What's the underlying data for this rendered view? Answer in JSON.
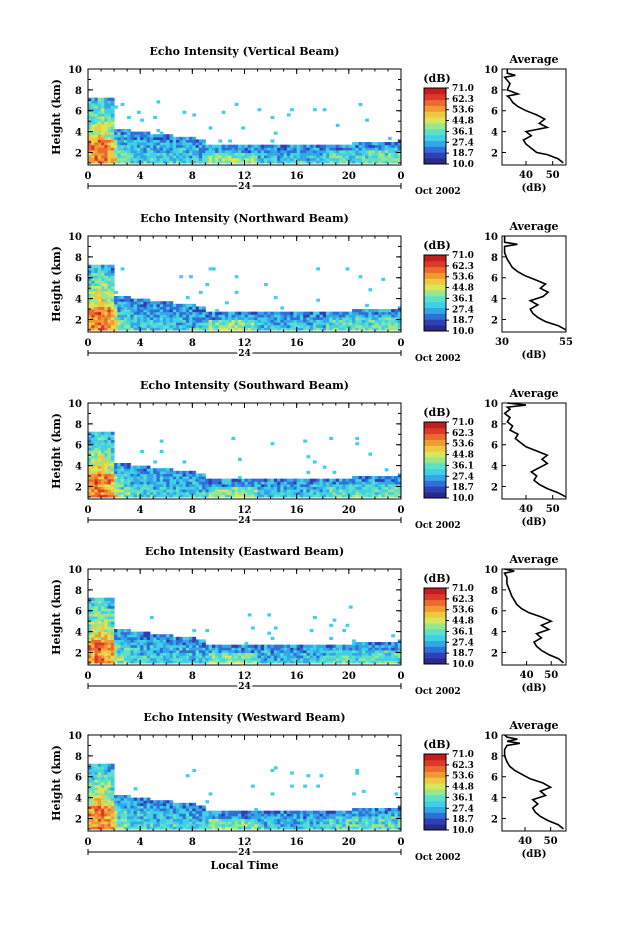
{
  "colors": {
    "colorbar": [
      "#2a2a88",
      "#2f3fb4",
      "#2f6fd8",
      "#33a6e8",
      "#3fd0e8",
      "#5ee0c8",
      "#9ae68a",
      "#d8e65a",
      "#f0c840",
      "#f09a36",
      "#ec6a2e",
      "#dc3a26",
      "#c01e20"
    ],
    "axis": "#000000",
    "profile_line": "#000000"
  },
  "chart_data": [
    {
      "type": "heatmap",
      "title": "Echo Intensity (Vertical Beam)",
      "ylabel": "Height (km)",
      "yticks": [
        "2",
        "4",
        "6",
        "8",
        "10"
      ],
      "ylim": [
        0.8,
        10
      ],
      "xlim": [
        0,
        24
      ],
      "xticks": [
        "0",
        "4",
        "8",
        "12",
        "16",
        "20",
        "0"
      ],
      "day_marker": "24",
      "date_label": "Oct 2002",
      "colorbar": {
        "unit": "(dB)",
        "ticks": [
          "71.0",
          "62.3",
          "53.6",
          "44.8",
          "36.1",
          "27.4",
          "18.7",
          "10.0"
        ]
      },
      "profile": {
        "title": "Average",
        "xlabel": "(dB)",
        "xticks": [
          "40",
          "50"
        ],
        "xlim": [
          31,
          55
        ],
        "yticks": [
          "2",
          "4",
          "6",
          "8",
          "10"
        ],
        "points": [
          [
            54,
            1.0
          ],
          [
            52,
            1.4
          ],
          [
            48,
            1.8
          ],
          [
            44,
            2.0
          ],
          [
            42,
            2.4
          ],
          [
            40,
            2.8
          ],
          [
            39,
            3.2
          ],
          [
            42,
            3.6
          ],
          [
            40,
            4.0
          ],
          [
            44,
            4.2
          ],
          [
            48,
            4.4
          ],
          [
            45,
            4.8
          ],
          [
            47,
            5.2
          ],
          [
            44,
            5.6
          ],
          [
            40,
            6.0
          ],
          [
            37,
            6.4
          ],
          [
            35,
            6.8
          ],
          [
            34,
            7.2
          ],
          [
            33,
            7.4
          ],
          [
            37,
            7.6
          ],
          [
            35,
            7.8
          ],
          [
            33,
            8.0
          ],
          [
            34,
            8.6
          ],
          [
            32,
            9.2
          ],
          [
            36,
            9.4
          ],
          [
            33,
            9.6
          ],
          [
            33,
            10
          ]
        ]
      }
    },
    {
      "type": "heatmap",
      "title": "Echo Intensity (Northward Beam)",
      "ylabel": "Height (km)",
      "yticks": [
        "2",
        "4",
        "6",
        "8",
        "10"
      ],
      "ylim": [
        0.8,
        10
      ],
      "xlim": [
        0,
        24
      ],
      "xticks": [
        "0",
        "4",
        "8",
        "12",
        "16",
        "20",
        "0"
      ],
      "day_marker": "24",
      "date_label": "Oct 2002",
      "colorbar": {
        "unit": "(dB)",
        "ticks": [
          "71.0",
          "62.3",
          "53.6",
          "44.8",
          "36.1",
          "27.4",
          "18.7",
          "10.0"
        ]
      },
      "profile": {
        "title": "Average",
        "xlabel": "(dB)",
        "xticks": [
          "30",
          "55"
        ],
        "xlim": [
          30,
          55
        ],
        "yticks": [
          "2",
          "4",
          "6",
          "8",
          "10"
        ],
        "points": [
          [
            55,
            1.0
          ],
          [
            52,
            1.4
          ],
          [
            47,
            1.8
          ],
          [
            44,
            2.2
          ],
          [
            42,
            2.6
          ],
          [
            41,
            3.0
          ],
          [
            44,
            3.4
          ],
          [
            41,
            3.8
          ],
          [
            46,
            4.2
          ],
          [
            48,
            4.6
          ],
          [
            45,
            5.0
          ],
          [
            47,
            5.4
          ],
          [
            43,
            5.8
          ],
          [
            39,
            6.2
          ],
          [
            36,
            6.6
          ],
          [
            34,
            7.0
          ],
          [
            33,
            7.4
          ],
          [
            32,
            7.8
          ],
          [
            31,
            8.4
          ],
          [
            31,
            9.0
          ],
          [
            36,
            9.2
          ],
          [
            31,
            9.4
          ],
          [
            31,
            10
          ]
        ]
      }
    },
    {
      "type": "heatmap",
      "title": "Echo Intensity (Southward Beam)",
      "ylabel": "Height (km)",
      "yticks": [
        "2",
        "4",
        "6",
        "8",
        "10"
      ],
      "ylim": [
        0.8,
        10
      ],
      "xlim": [
        0,
        24
      ],
      "xticks": [
        "0",
        "4",
        "8",
        "12",
        "16",
        "20",
        "0"
      ],
      "day_marker": "24",
      "date_label": "Oct 2002",
      "colorbar": {
        "unit": "(dB)",
        "ticks": [
          "71.0",
          "62.3",
          "53.6",
          "44.8",
          "36.1",
          "27.4",
          "18.7",
          "10.0"
        ]
      },
      "profile": {
        "title": "Average",
        "xlabel": "(dB)",
        "xticks": [
          "40",
          "50"
        ],
        "xlim": [
          31,
          55
        ],
        "yticks": [
          "2",
          "4",
          "6",
          "8",
          "10"
        ],
        "points": [
          [
            55,
            1.0
          ],
          [
            52,
            1.4
          ],
          [
            48,
            1.8
          ],
          [
            45,
            2.2
          ],
          [
            43,
            2.6
          ],
          [
            44,
            3.0
          ],
          [
            42,
            3.4
          ],
          [
            45,
            3.8
          ],
          [
            48,
            4.2
          ],
          [
            46,
            4.6
          ],
          [
            48,
            5.0
          ],
          [
            44,
            5.4
          ],
          [
            40,
            5.8
          ],
          [
            38,
            6.2
          ],
          [
            36,
            6.6
          ],
          [
            37,
            7.0
          ],
          [
            34,
            7.4
          ],
          [
            35,
            7.8
          ],
          [
            33,
            8.2
          ],
          [
            34,
            8.6
          ],
          [
            32,
            9.0
          ],
          [
            34,
            9.4
          ],
          [
            33,
            9.6
          ],
          [
            40,
            9.8
          ],
          [
            33,
            10
          ]
        ]
      }
    },
    {
      "type": "heatmap",
      "title": "Echo Intensity (Eastward Beam)",
      "ylabel": "Height (km)",
      "yticks": [
        "2",
        "4",
        "6",
        "8",
        "10"
      ],
      "ylim": [
        0.8,
        10
      ],
      "xlim": [
        0,
        24
      ],
      "xticks": [
        "0",
        "4",
        "8",
        "12",
        "16",
        "20",
        "0"
      ],
      "day_marker": "24",
      "date_label": "Oct 2002",
      "colorbar": {
        "unit": "(dB)",
        "ticks": [
          "71.0",
          "62.3",
          "53.6",
          "44.8",
          "36.1",
          "27.4",
          "18.7",
          "10.0"
        ]
      },
      "profile": {
        "title": "Average",
        "xlabel": "(dB)",
        "xticks": [
          "40",
          "50"
        ],
        "xlim": [
          30,
          56
        ],
        "yticks": [
          "2",
          "4",
          "6",
          "8",
          "10"
        ],
        "points": [
          [
            55,
            1.0
          ],
          [
            53,
            1.4
          ],
          [
            49,
            1.8
          ],
          [
            46,
            2.2
          ],
          [
            44,
            2.6
          ],
          [
            43,
            3.0
          ],
          [
            46,
            3.4
          ],
          [
            44,
            3.8
          ],
          [
            49,
            4.2
          ],
          [
            46,
            4.6
          ],
          [
            50,
            5.0
          ],
          [
            46,
            5.4
          ],
          [
            41,
            5.8
          ],
          [
            38,
            6.2
          ],
          [
            36,
            6.6
          ],
          [
            35,
            7.0
          ],
          [
            34,
            7.4
          ],
          [
            33,
            8.0
          ],
          [
            32,
            8.6
          ],
          [
            32,
            9.2
          ],
          [
            31,
            9.6
          ],
          [
            35,
            9.8
          ],
          [
            31,
            10
          ]
        ]
      }
    },
    {
      "type": "heatmap",
      "title": "Echo Intensity (Westward Beam)",
      "ylabel": "Height (km)",
      "yticks": [
        "2",
        "4",
        "6",
        "8",
        "10"
      ],
      "ylim": [
        0.8,
        10
      ],
      "xlim": [
        0,
        24
      ],
      "xticks": [
        "0",
        "4",
        "8",
        "12",
        "16",
        "20",
        "0"
      ],
      "day_marker": "24",
      "date_label": "Oct 2002",
      "xlabel": "Local Time",
      "colorbar": {
        "unit": "(dB)",
        "ticks": [
          "71.0",
          "62.3",
          "53.6",
          "44.8",
          "36.1",
          "27.4",
          "18.7",
          "10.0"
        ]
      },
      "profile": {
        "title": "Average",
        "xlabel": "(dB)",
        "xticks": [
          "40",
          "50"
        ],
        "xlim": [
          31,
          56
        ],
        "yticks": [
          "2",
          "4",
          "6",
          "8",
          "10"
        ],
        "points": [
          [
            55,
            1.0
          ],
          [
            53,
            1.4
          ],
          [
            49,
            1.8
          ],
          [
            46,
            2.2
          ],
          [
            44,
            2.6
          ],
          [
            43,
            3.0
          ],
          [
            45,
            3.4
          ],
          [
            43,
            3.8
          ],
          [
            48,
            4.2
          ],
          [
            46,
            4.6
          ],
          [
            50,
            5.0
          ],
          [
            47,
            5.4
          ],
          [
            42,
            5.8
          ],
          [
            39,
            6.2
          ],
          [
            36,
            6.6
          ],
          [
            34,
            7.0
          ],
          [
            33,
            7.4
          ],
          [
            32,
            8.0
          ],
          [
            32,
            8.6
          ],
          [
            33,
            9.0
          ],
          [
            38,
            9.2
          ],
          [
            33,
            9.4
          ],
          [
            37,
            9.6
          ],
          [
            33,
            9.8
          ],
          [
            32,
            10
          ]
        ]
      }
    }
  ]
}
